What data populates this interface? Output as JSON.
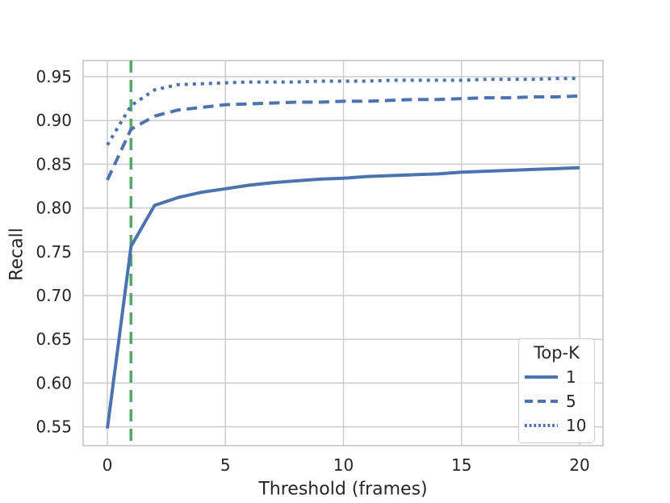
{
  "chart_data": {
    "type": "line",
    "title": "",
    "xlabel": "Threshold (frames)",
    "ylabel": "Recall",
    "x": [
      0,
      1,
      2,
      3,
      4,
      5,
      6,
      7,
      8,
      9,
      10,
      11,
      12,
      13,
      14,
      15,
      16,
      17,
      18,
      19,
      20
    ],
    "series": [
      {
        "name": "1",
        "style": "solid",
        "values": [
          0.548,
          0.756,
          0.803,
          0.812,
          0.818,
          0.822,
          0.826,
          0.829,
          0.831,
          0.833,
          0.834,
          0.836,
          0.837,
          0.838,
          0.839,
          0.841,
          0.842,
          0.843,
          0.844,
          0.845,
          0.846
        ]
      },
      {
        "name": "5",
        "style": "dashed",
        "values": [
          0.832,
          0.89,
          0.905,
          0.912,
          0.915,
          0.918,
          0.919,
          0.92,
          0.921,
          0.921,
          0.922,
          0.922,
          0.923,
          0.924,
          0.924,
          0.925,
          0.926,
          0.926,
          0.927,
          0.927,
          0.928
        ]
      },
      {
        "name": "10",
        "style": "dotted",
        "values": [
          0.872,
          0.917,
          0.935,
          0.941,
          0.942,
          0.943,
          0.944,
          0.944,
          0.944,
          0.945,
          0.945,
          0.945,
          0.946,
          0.946,
          0.946,
          0.946,
          0.947,
          0.947,
          0.947,
          0.948,
          0.948
        ]
      }
    ],
    "vline": {
      "x": 1,
      "style": "dashed",
      "color": "#55a868"
    },
    "xticks": [
      0,
      5,
      10,
      15,
      20
    ],
    "yticks": [
      0.55,
      0.6,
      0.65,
      0.7,
      0.75,
      0.8,
      0.85,
      0.9,
      0.95
    ],
    "xlim": [
      -1.026,
      20.991
    ],
    "ylim": [
      0.5284,
      0.9685
    ],
    "grid": true,
    "legend": {
      "title": "Top-K",
      "position": "lower right",
      "entries": [
        "1",
        "5",
        "10"
      ]
    },
    "line_color": "#4c72b0"
  },
  "style": {
    "grid_color": "#cccccc",
    "spine_color": "#cccccc",
    "text_color": "#262626",
    "background": "#ffffff"
  }
}
